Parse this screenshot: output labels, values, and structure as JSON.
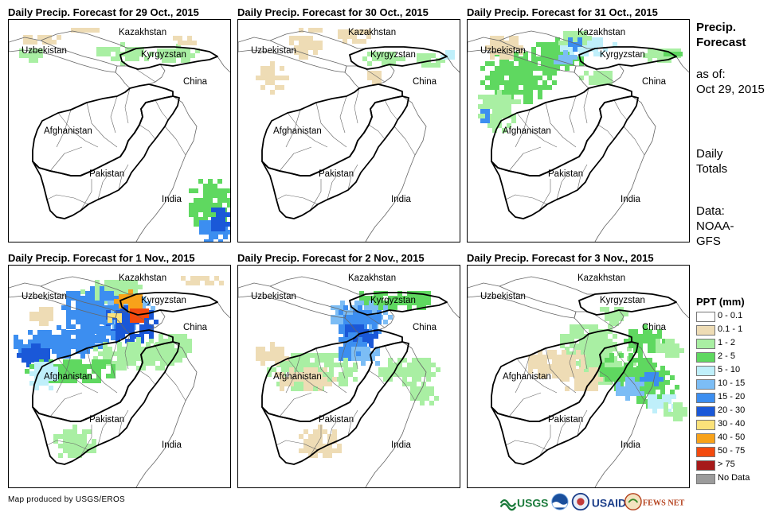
{
  "panels": [
    {
      "title": "Daily Precip. Forecast for 29 Oct., 2015",
      "day": "d1"
    },
    {
      "title": "Daily Precip. Forecast for 30 Oct., 2015",
      "day": "d2"
    },
    {
      "title": "Daily Precip. Forecast for 31 Oct., 2015",
      "day": "d3"
    },
    {
      "title": "Daily Precip. Forecast for 1 Nov., 2015",
      "day": "d4"
    },
    {
      "title": "Daily Precip. Forecast for 2 Nov., 2015",
      "day": "d5"
    },
    {
      "title": "Daily Precip. Forecast for 3 Nov., 2015",
      "day": "d6"
    }
  ],
  "countries": {
    "kazakhstan": "Kazakhstan",
    "uzbekistan": "Uzbekistan",
    "kyrgyzstan": "Kyrgyzstan",
    "china": "China",
    "afghanistan": "Afghanistan",
    "pakistan": "Pakistan",
    "india": "India"
  },
  "side": {
    "title_line1": "Precip.",
    "title_line2": "Forecast",
    "asof_line1": "as of:",
    "asof_line2": "Oct 29, 2015",
    "daily_line1": "Daily",
    "daily_line2": "Totals",
    "data_line1": "Data:",
    "data_line2": "NOAA-",
    "data_line3": "GFS"
  },
  "legend": {
    "title": "PPT (mm)",
    "items": [
      {
        "label": "0 - 0.1",
        "color": "#ffffff"
      },
      {
        "label": "0.1 - 1",
        "color": "#eedcb5"
      },
      {
        "label": "1 - 2",
        "color": "#a9efa3"
      },
      {
        "label": "2 - 5",
        "color": "#5fd860"
      },
      {
        "label": "5 - 10",
        "color": "#bfeffa"
      },
      {
        "label": "10 - 15",
        "color": "#7cbdf5"
      },
      {
        "label": "15 - 20",
        "color": "#3c8ef0"
      },
      {
        "label": "20 - 30",
        "color": "#1a58d8"
      },
      {
        "label": "30 - 40",
        "color": "#fbe27a"
      },
      {
        "label": "40 - 50",
        "color": "#f8a21a"
      },
      {
        "label": "50 - 75",
        "color": "#f34a0e"
      },
      {
        "label": "> 75",
        "color": "#a61a1a"
      },
      {
        "label": "No Data",
        "color": "#9b9b9b"
      }
    ]
  },
  "credit": "Map produced by USGS/EROS",
  "logos": [
    "USGS",
    "NOAA",
    "USAID",
    "FEWS NET"
  ]
}
